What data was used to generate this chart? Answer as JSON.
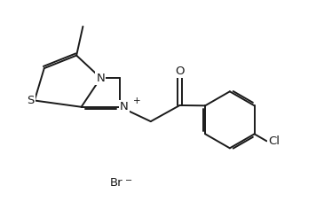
{
  "bg_color": "#ffffff",
  "line_color": "#1a1a1a",
  "line_width": 1.4,
  "font_size": 9.5,
  "figsize": [
    3.65,
    2.27
  ],
  "dpi": 100,
  "xlim": [
    0,
    10
  ],
  "ylim": [
    0,
    6.2
  ]
}
